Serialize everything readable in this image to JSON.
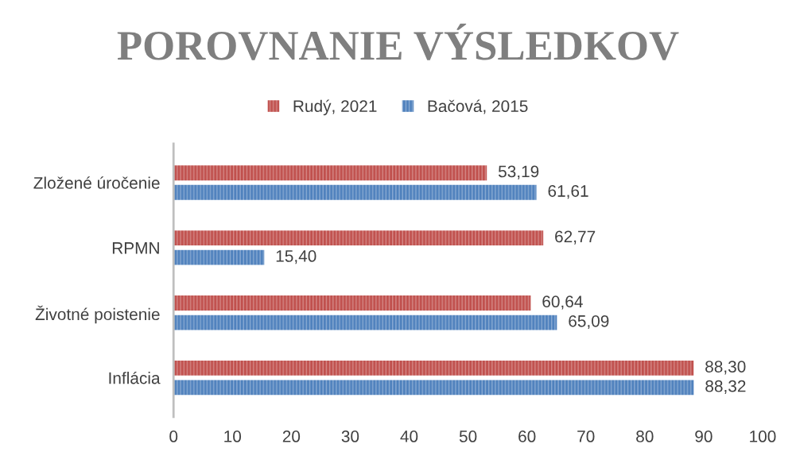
{
  "chart_data": {
    "type": "bar",
    "orientation": "horizontal",
    "title": "POROVNANIE VÝSLEDKOV",
    "categories": [
      "Zložené úročenie",
      "RPMN",
      "Životné poistenie",
      "Inflácia"
    ],
    "series": [
      {
        "name": "Rudý, 2021",
        "color": "#c0504d",
        "values": [
          53.19,
          62.77,
          60.64,
          88.3
        ],
        "value_labels": [
          "53,19",
          "62,77",
          "60,64",
          "88,30"
        ]
      },
      {
        "name": "Bačová, 2015",
        "color": "#4f81bd",
        "values": [
          61.61,
          15.4,
          65.09,
          88.32
        ],
        "value_labels": [
          "61,61",
          "15,40",
          "65,09",
          "88,32"
        ]
      }
    ],
    "xlim": [
      0,
      100
    ],
    "xticks": [
      0,
      10,
      20,
      30,
      40,
      50,
      60,
      70,
      80,
      90,
      100
    ],
    "grid": false,
    "legend": "top"
  }
}
